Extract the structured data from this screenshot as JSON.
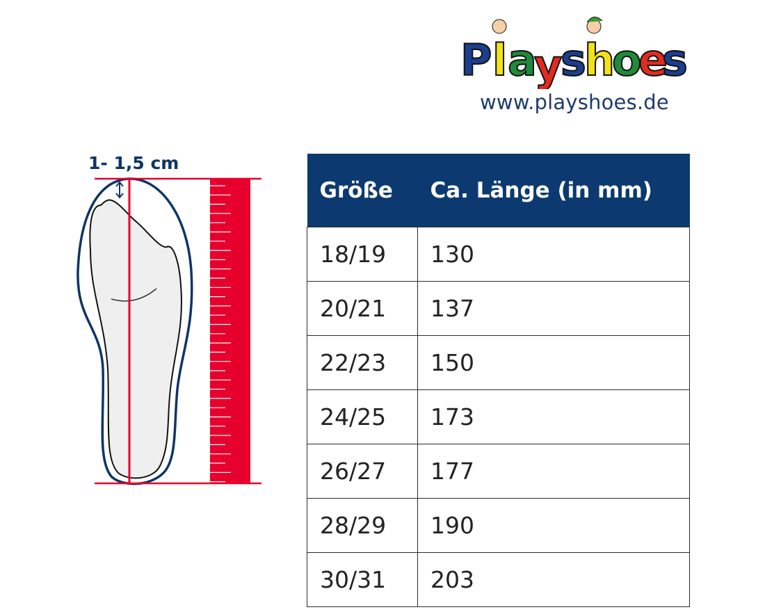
{
  "brand": {
    "logo_text": "Playshoes",
    "url": "www.playshoes.de"
  },
  "diagram": {
    "measure_label": "1- 1,5 cm"
  },
  "colors": {
    "header": "#0c3a70",
    "ruler": "#e8002d",
    "outline": "#0e3566"
  },
  "table": {
    "headers": [
      "Größe",
      "Ca. Länge (in mm)"
    ],
    "rows": [
      [
        "18/19",
        "130"
      ],
      [
        "20/21",
        "137"
      ],
      [
        "22/23",
        "150"
      ],
      [
        "24/25",
        "173"
      ],
      [
        "26/27",
        "177"
      ],
      [
        "28/29",
        "190"
      ],
      [
        "30/31",
        "203"
      ]
    ]
  }
}
